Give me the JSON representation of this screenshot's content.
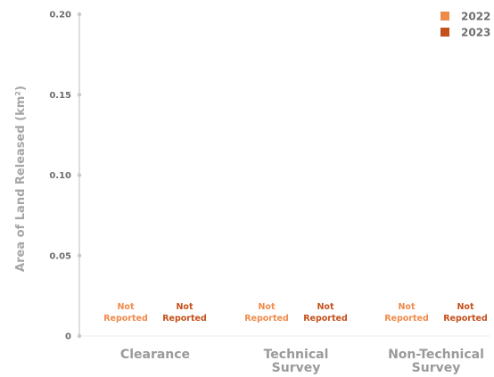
{
  "chart_data": {
    "type": "bar",
    "title": "",
    "xlabel": "",
    "ylabel": "Area of Land Released (km²)",
    "ylim": [
      0,
      0.2
    ],
    "yticks": [
      {
        "value": 0,
        "label": "0"
      },
      {
        "value": 0.05,
        "label": "0.05"
      },
      {
        "value": 0.1,
        "label": "0.10"
      },
      {
        "value": 0.15,
        "label": "0.15"
      },
      {
        "value": 0.2,
        "label": "0.20"
      }
    ],
    "categories": [
      {
        "name": "Clearance",
        "lines": [
          "Clearance"
        ]
      },
      {
        "name": "Technical Survey",
        "lines": [
          "Technical",
          "Survey"
        ]
      },
      {
        "name": "Non-Technical Survey",
        "lines": [
          "Non-Technical",
          "Survey"
        ]
      }
    ],
    "series": [
      {
        "name": "2022",
        "color": "#f08a4b",
        "values": [
          null,
          null,
          null
        ],
        "data_labels": [
          [
            "Not",
            "Reported"
          ],
          [
            "Not",
            "Reported"
          ],
          [
            "Not",
            "Reported"
          ]
        ]
      },
      {
        "name": "2023",
        "color": "#c4501b",
        "values": [
          null,
          null,
          null
        ],
        "data_labels": [
          [
            "Not",
            "Reported"
          ],
          [
            "Not",
            "Reported"
          ],
          [
            "Not",
            "Reported"
          ]
        ]
      }
    ],
    "legend_position": "top-right",
    "grid": false,
    "axis_color": "#c8c8c8"
  }
}
